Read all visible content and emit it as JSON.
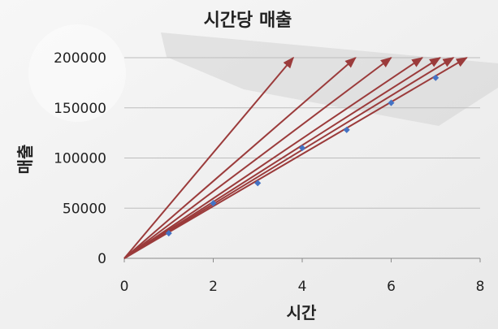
{
  "chart_data": {
    "type": "scatter",
    "title": "시간당 매출",
    "xlabel": "시간",
    "ylabel": "매출",
    "xlim": [
      0,
      8
    ],
    "ylim": [
      0,
      200000
    ],
    "xticks": [
      0,
      2,
      4,
      6,
      8
    ],
    "yticks": [
      0,
      50000,
      100000,
      150000,
      200000
    ],
    "xtick_labels": [
      "0",
      "2",
      "4",
      "6",
      "8"
    ],
    "ytick_labels": [
      "0",
      "50000",
      "100000",
      "150000",
      "200000"
    ],
    "grid": "horizontal",
    "legend": "none",
    "series": [
      {
        "x": [
          1,
          2,
          3,
          4,
          5,
          6,
          7
        ],
        "y": [
          25000,
          55000,
          75000,
          110000,
          128000,
          155000,
          180000
        ],
        "color": "#4472c4",
        "marker": "diamond"
      }
    ],
    "annotations": {
      "type": "arrows",
      "color": "#9b3b3b",
      "from": [
        0,
        0
      ],
      "to": [
        [
          3.8,
          200000
        ],
        [
          5.2,
          200000
        ],
        [
          6.0,
          200000
        ],
        [
          6.7,
          200000
        ],
        [
          7.1,
          200000
        ],
        [
          7.4,
          200000
        ],
        [
          7.7,
          200000
        ]
      ]
    }
  }
}
